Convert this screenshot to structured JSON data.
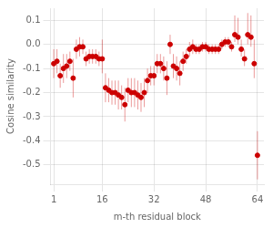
{
  "chart_data": {
    "type": "scatter",
    "xlabel": "m-th residual block",
    "ylabel": "Cosine similarity",
    "xlim": [
      0,
      66
    ],
    "xticks": [
      1,
      16,
      32,
      48,
      64
    ],
    "ylim": [
      -0.58,
      0.15
    ],
    "yticks": [
      0.1,
      {
        "value": 0.0,
        "label": "0.0"
      },
      -0.1,
      -0.2,
      -0.3,
      -0.4,
      -0.5
    ],
    "grid": true,
    "color": "#cc0000",
    "marker": "circle",
    "x": [
      1,
      2,
      3,
      4,
      5,
      6,
      7,
      8,
      9,
      10,
      11,
      12,
      13,
      14,
      15,
      16,
      17,
      18,
      19,
      20,
      21,
      22,
      23,
      24,
      25,
      26,
      27,
      28,
      29,
      30,
      31,
      32,
      33,
      34,
      35,
      36,
      37,
      38,
      39,
      40,
      41,
      42,
      43,
      44,
      45,
      46,
      47,
      48,
      49,
      50,
      51,
      52,
      53,
      54,
      55,
      56,
      57,
      58,
      59,
      60,
      61,
      62,
      63,
      64
    ],
    "values": [
      -0.08,
      -0.07,
      -0.13,
      -0.1,
      -0.09,
      -0.07,
      -0.14,
      -0.02,
      -0.01,
      -0.01,
      -0.06,
      -0.05,
      -0.05,
      -0.05,
      -0.06,
      -0.06,
      -0.18,
      -0.19,
      -0.2,
      -0.2,
      -0.21,
      -0.22,
      -0.25,
      -0.19,
      -0.2,
      -0.2,
      -0.21,
      -0.22,
      -0.2,
      -0.15,
      -0.13,
      -0.13,
      -0.08,
      -0.08,
      -0.1,
      -0.14,
      0.0,
      -0.09,
      -0.1,
      -0.12,
      -0.07,
      -0.05,
      -0.02,
      -0.01,
      -0.02,
      -0.02,
      -0.01,
      -0.01,
      -0.02,
      -0.02,
      -0.02,
      -0.02,
      0.0,
      0.01,
      0.01,
      -0.01,
      0.04,
      0.03,
      -0.02,
      -0.06,
      0.04,
      0.03,
      -0.08,
      -0.46
    ],
    "yerr_low": [
      0.06,
      0.05,
      0.05,
      0.06,
      0.05,
      0.04,
      0.08,
      0.04,
      0.04,
      0.03,
      0.03,
      0.03,
      0.03,
      0.03,
      0.03,
      0.06,
      0.06,
      0.05,
      0.05,
      0.05,
      0.06,
      0.05,
      0.07,
      0.05,
      0.06,
      0.06,
      0.06,
      0.06,
      0.06,
      0.05,
      0.04,
      0.04,
      0.04,
      0.04,
      0.05,
      0.07,
      0.04,
      0.05,
      0.05,
      0.05,
      0.04,
      0.03,
      0.03,
      0.03,
      0.02,
      0.02,
      0.02,
      0.02,
      0.02,
      0.02,
      0.02,
      0.02,
      0.02,
      0.02,
      0.02,
      0.02,
      0.03,
      0.03,
      0.03,
      0.03,
      0.04,
      0.04,
      0.06,
      0.1
    ],
    "yerr_high": [
      0.06,
      0.05,
      0.05,
      0.06,
      0.05,
      0.04,
      0.08,
      0.04,
      0.04,
      0.03,
      0.03,
      0.03,
      0.03,
      0.03,
      0.03,
      0.08,
      0.06,
      0.05,
      0.05,
      0.05,
      0.06,
      0.05,
      0.07,
      0.05,
      0.06,
      0.06,
      0.06,
      0.06,
      0.06,
      0.05,
      0.04,
      0.04,
      0.04,
      0.04,
      0.05,
      0.07,
      0.04,
      0.05,
      0.05,
      0.05,
      0.04,
      0.03,
      0.03,
      0.03,
      0.02,
      0.02,
      0.02,
      0.02,
      0.02,
      0.02,
      0.02,
      0.02,
      0.02,
      0.02,
      0.02,
      0.02,
      0.08,
      0.08,
      0.04,
      0.04,
      0.09,
      0.09,
      0.1,
      0.1
    ]
  }
}
